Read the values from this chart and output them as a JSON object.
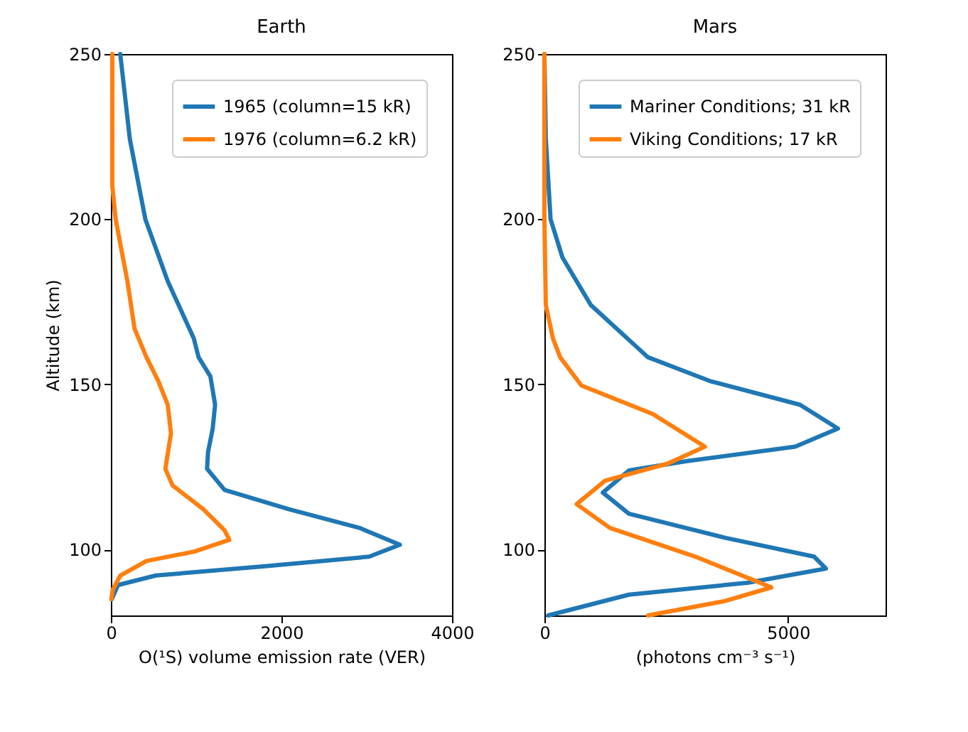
{
  "chart_data": [
    {
      "type": "line",
      "title": "Earth",
      "xlabel": "O(¹S) volume emission rate (VER)",
      "ylabel": "Altitude (km)",
      "xlim": [
        0,
        4000
      ],
      "xticks": [
        0,
        2000,
        4000
      ],
      "ylim": [
        80,
        250
      ],
      "yticks": [
        100,
        150,
        200,
        250
      ],
      "legend": "top right",
      "grid": false,
      "marker": "none",
      "line_style": "solid",
      "series": [
        {
          "name": "1965 (column=15 kR)",
          "color": "#1f77b4",
          "x": [
            10,
            83,
            528,
            1806,
            3028,
            3389,
            2917,
            2083,
            1333,
            1128,
            1139,
            1194,
            1222,
            1167,
            1028,
            972,
            667,
            405,
            222,
            110
          ],
          "values": [
            84.9,
            89.2,
            92.1,
            94.9,
            97.8,
            101.4,
            106.5,
            112.2,
            118,
            124.4,
            129.4,
            136.6,
            143.8,
            152.4,
            158.2,
            163.9,
            181.2,
            199.9,
            224.3,
            250
          ]
        },
        {
          "name": "1976 (column=6.2 kR)",
          "color": "#ff7f0e",
          "x": [
            5,
            22,
            111,
            417,
            972,
            1389,
            1333,
            1083,
            722,
            639,
            705,
            667,
            556,
            417,
            278,
            194,
            56,
            17,
            17
          ],
          "values": [
            84.9,
            87.8,
            92.1,
            96.5,
            99.3,
            102.9,
            105.8,
            112.2,
            119.4,
            124.4,
            135.2,
            143.8,
            151,
            158.2,
            166.8,
            181.2,
            200,
            210,
            250
          ]
        }
      ]
    },
    {
      "type": "line",
      "title": "Mars",
      "xlabel": "(photons cm⁻³ s⁻¹)",
      "xlim": [
        0,
        7000
      ],
      "xticks": [
        0,
        5000
      ],
      "ylim": [
        80,
        250
      ],
      "yticks": [
        100,
        150,
        200,
        250
      ],
      "legend": "top right",
      "grid": false,
      "marker": "none",
      "line_style": "solid",
      "series": [
        {
          "name": "Mariner Conditions; 31 kR",
          "color": "#1f77b4",
          "x": [
            76,
            1734,
            4170,
            5778,
            5535,
            3684,
            1734,
            1199,
            1734,
            2904,
            5146,
            6023,
            5243,
            3392,
            2123,
            953,
            370,
            126,
            29,
            0
          ],
          "values": [
            80,
            86.3,
            89.9,
            94.2,
            97.8,
            103.6,
            110.8,
            117.2,
            123.9,
            126.7,
            131.1,
            136.6,
            143.8,
            151,
            158.2,
            174,
            188.4,
            200,
            224.3,
            250
          ]
        },
        {
          "name": "Viking Conditions; 17 kR",
          "color": "#ff7f0e",
          "x": [
            2123,
            3684,
            4658,
            3099,
            1345,
            661,
            1246,
            2515,
            3293,
            2222,
            760,
            322,
            175,
            29,
            0,
            0
          ],
          "values": [
            80,
            84.3,
            88.5,
            97.8,
            106.5,
            113.7,
            120.8,
            125.9,
            131.1,
            141,
            149.6,
            158.2,
            163.9,
            174,
            200,
            250
          ]
        }
      ]
    }
  ]
}
